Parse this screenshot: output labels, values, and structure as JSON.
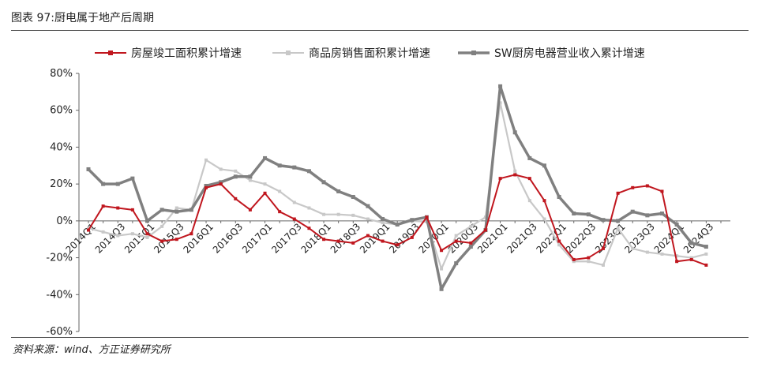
{
  "figure_title": "图表 97:厨电属于地产后周期",
  "source_note": "资料来源：wind、方正证券研究所",
  "chart_data": {
    "type": "line",
    "title": "图表 97:厨电属于地产后周期",
    "xlabel": "",
    "ylabel": "",
    "ylim": [
      -60,
      80
    ],
    "yticks": [
      80,
      60,
      40,
      20,
      0,
      -20,
      -40,
      -60
    ],
    "ytick_labels": [
      "80%",
      "60%",
      "40%",
      "20%",
      "0%",
      "-20%",
      "-40%",
      "-60%"
    ],
    "grid": false,
    "legend_position": "top",
    "categories": [
      "2014Q1",
      "2014Q2",
      "2014Q3",
      "2014Q4",
      "2015Q1",
      "2015Q2",
      "2015Q3",
      "2015Q4",
      "2016Q1",
      "2016Q2",
      "2016Q3",
      "2016Q4",
      "2017Q1",
      "2017Q2",
      "2017Q3",
      "2017Q4",
      "2018Q1",
      "2018Q2",
      "2018Q3",
      "2018Q4",
      "2019Q1",
      "2019Q2",
      "2019Q3",
      "2019Q4",
      "2020Q1",
      "2020Q2",
      "2020Q3",
      "2020Q4",
      "2021Q1",
      "2021Q2",
      "2021Q3",
      "2021Q4",
      "2022Q1",
      "2022Q2",
      "2022Q3",
      "2022Q4",
      "2023Q1",
      "2023Q2",
      "2023Q3",
      "2023Q4",
      "2024Q1",
      "2024Q2",
      "2024Q3",
      "2024Q4"
    ],
    "x_tick_labels": [
      "2014Q1",
      "2014Q3",
      "2015Q1",
      "2015Q3",
      "2016Q1",
      "2016Q3",
      "2017Q1",
      "2017Q3",
      "2018Q1",
      "2018Q3",
      "2019Q1",
      "2019Q3",
      "2020Q1",
      "2020Q3",
      "2021Q1",
      "2021Q3",
      "2022Q1",
      "2022Q3",
      "2023Q1",
      "2023Q3",
      "2024Q1",
      "2024Q3"
    ],
    "series": [
      {
        "name": "房屋竣工面积累计增速",
        "color": "#c0161e",
        "marker": "square",
        "values": [
          -5,
          8,
          7,
          6,
          -7,
          -11,
          -10,
          -7,
          18,
          20,
          12,
          6,
          15,
          5,
          1,
          -4,
          -10,
          -11,
          -12,
          -8,
          -11,
          -13,
          -9,
          2,
          -16,
          -11,
          -12,
          -5,
          23,
          25,
          23,
          11,
          -11,
          -21,
          -20,
          -15,
          15,
          18,
          19,
          16,
          -22,
          -21,
          -24,
          null
        ]
      },
      {
        "name": "商品房销售面积累计增速",
        "color": "#c8c8c8",
        "marker": "square",
        "values": [
          -4,
          -6,
          -8,
          -7,
          -9,
          -3,
          7,
          6,
          33,
          28,
          27,
          22,
          20,
          16,
          10,
          7,
          3.5,
          3.5,
          3,
          1,
          -1,
          -2,
          0,
          -0.5,
          -26,
          -8,
          -3,
          2,
          64,
          27,
          11,
          1,
          -13,
          -22,
          -22,
          -24,
          -4,
          -15,
          -17,
          -18,
          -19,
          -20,
          -18,
          null
        ]
      },
      {
        "name": "SW厨房电器营业收入累计增速",
        "color": "#808080",
        "marker": "square",
        "values": [
          28,
          20,
          20,
          23,
          0,
          6,
          5,
          6,
          19,
          21,
          24,
          24,
          34,
          30,
          29,
          27,
          21,
          16,
          13,
          8,
          1,
          -2,
          0.5,
          2,
          -37,
          -23,
          -14,
          -5,
          73,
          48,
          34,
          30,
          13,
          4,
          3.5,
          0.5,
          0,
          5,
          3,
          4,
          -2,
          -12,
          -14,
          null
        ]
      }
    ]
  }
}
